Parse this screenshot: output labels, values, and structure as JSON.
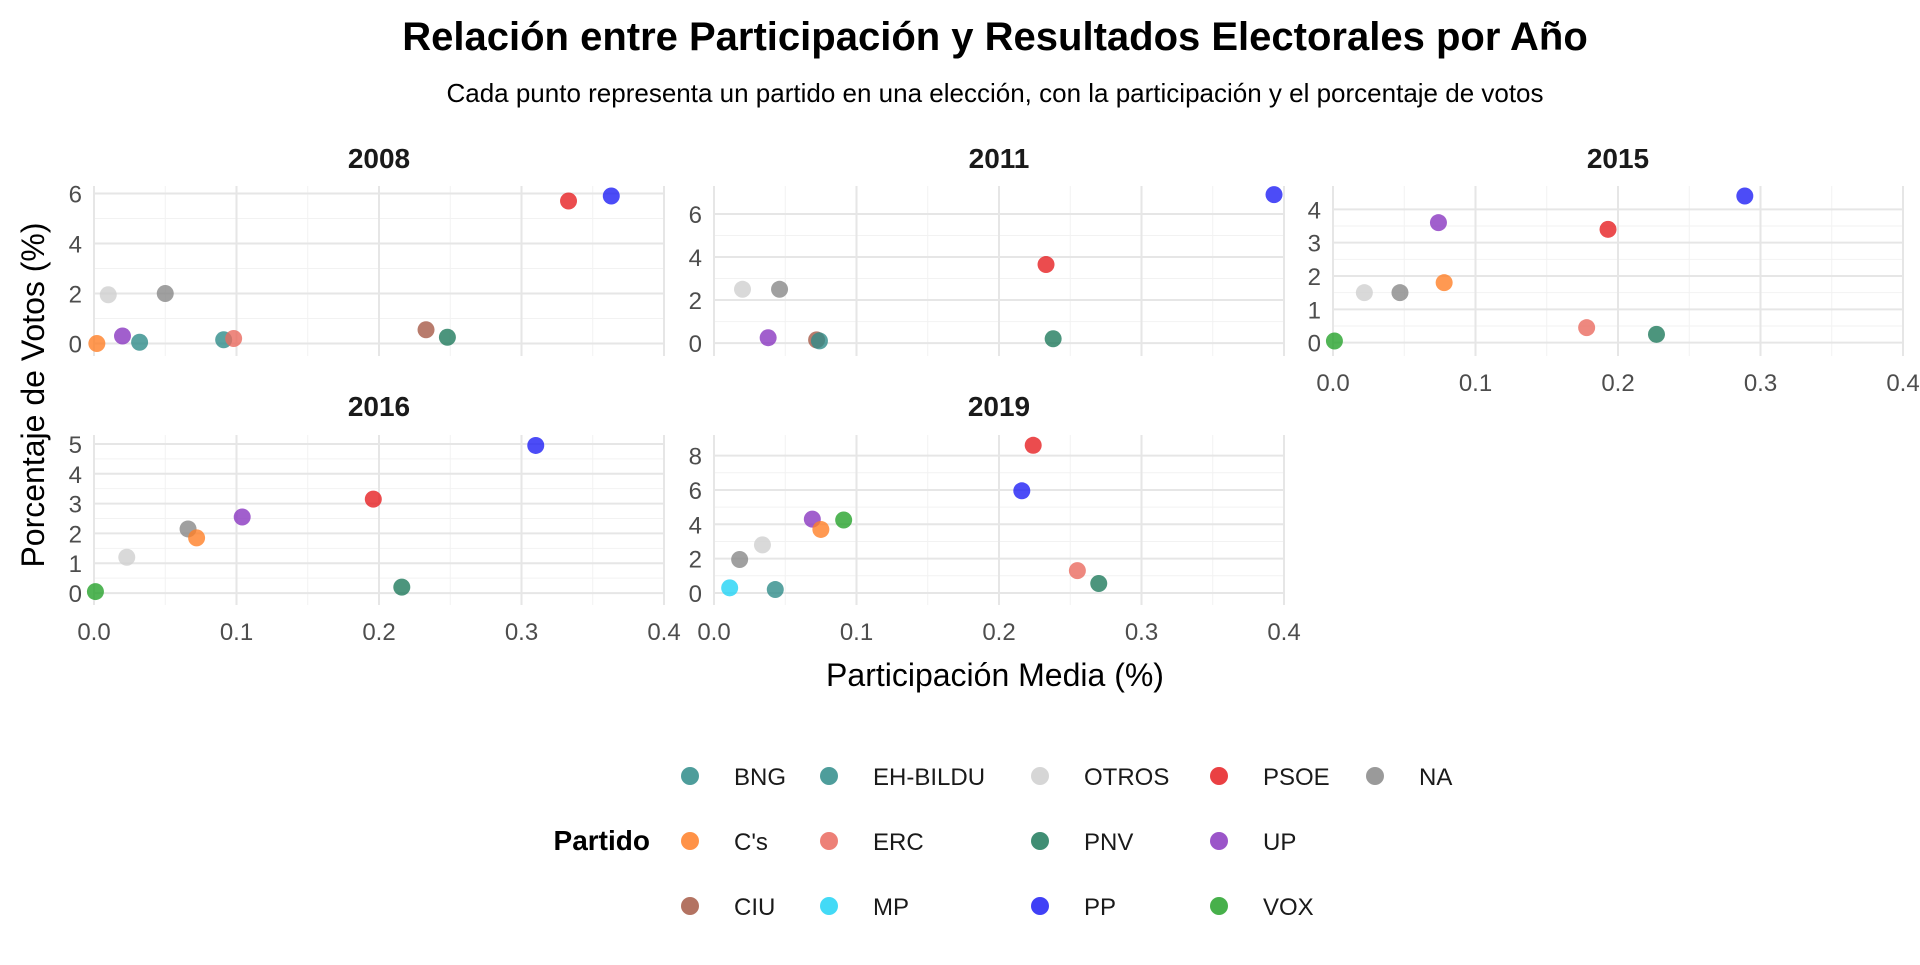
{
  "chart_data": {
    "type": "scatter",
    "title": "Relación entre Participación y Resultados Electorales por Año",
    "subtitle": "Cada punto representa un partido en una elección, con la participación y el porcentaje de votos",
    "xlabel": "Participación Media (%)",
    "ylabel": "Porcentaje de Votos (%)",
    "xlim": [
      0.0,
      0.4
    ],
    "x_ticks": [
      "0.0",
      "0.1",
      "0.2",
      "0.3",
      "0.4"
    ],
    "grid": true,
    "legend": {
      "title": "Partido",
      "placement": "bottom",
      "entries": [
        {
          "name": "BNG",
          "color": "#2f8c8a"
        },
        {
          "name": "C's",
          "color": "#ff7f27"
        },
        {
          "name": "CIU",
          "color": "#a65a47"
        },
        {
          "name": "EH-BILDU",
          "color": "#2f8c8a"
        },
        {
          "name": "ERC",
          "color": "#ea6a5f"
        },
        {
          "name": "MP",
          "color": "#22d3f5"
        },
        {
          "name": "OTROS",
          "color": "#cfcfcf"
        },
        {
          "name": "PNV",
          "color": "#1f7a5c"
        },
        {
          "name": "PP",
          "color": "#1f1ff5"
        },
        {
          "name": "PSOE",
          "color": "#e61f22"
        },
        {
          "name": "UP",
          "color": "#8a37c0"
        },
        {
          "name": "VOX",
          "color": "#27a22c"
        },
        {
          "name": "NA",
          "color": "#888888"
        }
      ]
    },
    "panels": [
      {
        "label": "2008",
        "ylim": [
          -0.5,
          6.3
        ],
        "y_ticks": [
          0,
          2,
          4,
          6
        ],
        "points": [
          {
            "partido": "C's",
            "x": 0.002,
            "y": 0.0
          },
          {
            "partido": "OTROS",
            "x": 0.01,
            "y": 1.95
          },
          {
            "partido": "UP",
            "x": 0.02,
            "y": 0.3
          },
          {
            "partido": "EH-BILDU",
            "x": 0.032,
            "y": 0.05
          },
          {
            "partido": "NA",
            "x": 0.05,
            "y": 2.0
          },
          {
            "partido": "BNG",
            "x": 0.091,
            "y": 0.15
          },
          {
            "partido": "ERC",
            "x": 0.098,
            "y": 0.2
          },
          {
            "partido": "CIU",
            "x": 0.233,
            "y": 0.55
          },
          {
            "partido": "PNV",
            "x": 0.248,
            "y": 0.25
          },
          {
            "partido": "PSOE",
            "x": 0.333,
            "y": 5.7
          },
          {
            "partido": "PP",
            "x": 0.363,
            "y": 5.9
          }
        ]
      },
      {
        "label": "2011",
        "ylim": [
          -0.6,
          7.3
        ],
        "y_ticks": [
          0,
          2,
          4,
          6
        ],
        "points": [
          {
            "partido": "OTROS",
            "x": 0.02,
            "y": 2.5
          },
          {
            "partido": "UP",
            "x": 0.038,
            "y": 0.25
          },
          {
            "partido": "NA",
            "x": 0.046,
            "y": 2.5
          },
          {
            "partido": "CIU",
            "x": 0.072,
            "y": 0.15
          },
          {
            "partido": "EH-BILDU",
            "x": 0.074,
            "y": 0.1
          },
          {
            "partido": "PSOE",
            "x": 0.233,
            "y": 3.65
          },
          {
            "partido": "PNV",
            "x": 0.238,
            "y": 0.2
          },
          {
            "partido": "PP",
            "x": 0.393,
            "y": 6.9
          }
        ]
      },
      {
        "label": "2015",
        "ylim": [
          -0.4,
          4.7
        ],
        "y_ticks": [
          0,
          1,
          2,
          3,
          4
        ],
        "points": [
          {
            "partido": "VOX",
            "x": 0.001,
            "y": 0.05
          },
          {
            "partido": "OTROS",
            "x": 0.022,
            "y": 1.5
          },
          {
            "partido": "NA",
            "x": 0.047,
            "y": 1.5
          },
          {
            "partido": "UP",
            "x": 0.074,
            "y": 3.6
          },
          {
            "partido": "C's",
            "x": 0.078,
            "y": 1.8
          },
          {
            "partido": "ERC",
            "x": 0.178,
            "y": 0.45
          },
          {
            "partido": "PSOE",
            "x": 0.193,
            "y": 3.4
          },
          {
            "partido": "PNV",
            "x": 0.227,
            "y": 0.25
          },
          {
            "partido": "PP",
            "x": 0.289,
            "y": 4.4
          }
        ]
      },
      {
        "label": "2016",
        "ylim": [
          -0.4,
          5.3
        ],
        "y_ticks": [
          0,
          1,
          2,
          3,
          4,
          5
        ],
        "points": [
          {
            "partido": "VOX",
            "x": 0.001,
            "y": 0.05
          },
          {
            "partido": "OTROS",
            "x": 0.023,
            "y": 1.2
          },
          {
            "partido": "NA",
            "x": 0.066,
            "y": 2.15
          },
          {
            "partido": "C's",
            "x": 0.072,
            "y": 1.85
          },
          {
            "partido": "UP",
            "x": 0.104,
            "y": 2.55
          },
          {
            "partido": "PSOE",
            "x": 0.196,
            "y": 3.15
          },
          {
            "partido": "PNV",
            "x": 0.216,
            "y": 0.2
          },
          {
            "partido": "PP",
            "x": 0.31,
            "y": 4.95
          }
        ]
      },
      {
        "label": "2019",
        "ylim": [
          -0.7,
          9.2
        ],
        "y_ticks": [
          0,
          2,
          4,
          6,
          8
        ],
        "points": [
          {
            "partido": "MP",
            "x": 0.011,
            "y": 0.3
          },
          {
            "partido": "NA",
            "x": 0.018,
            "y": 1.95
          },
          {
            "partido": "OTROS",
            "x": 0.034,
            "y": 2.8
          },
          {
            "partido": "EH-BILDU",
            "x": 0.043,
            "y": 0.2
          },
          {
            "partido": "UP",
            "x": 0.069,
            "y": 4.3
          },
          {
            "partido": "C's",
            "x": 0.075,
            "y": 3.7
          },
          {
            "partido": "VOX",
            "x": 0.091,
            "y": 4.25
          },
          {
            "partido": "PP",
            "x": 0.216,
            "y": 5.95
          },
          {
            "partido": "PSOE",
            "x": 0.224,
            "y": 8.6
          },
          {
            "partido": "ERC",
            "x": 0.255,
            "y": 1.3
          },
          {
            "partido": "PNV",
            "x": 0.27,
            "y": 0.55
          }
        ]
      }
    ]
  }
}
